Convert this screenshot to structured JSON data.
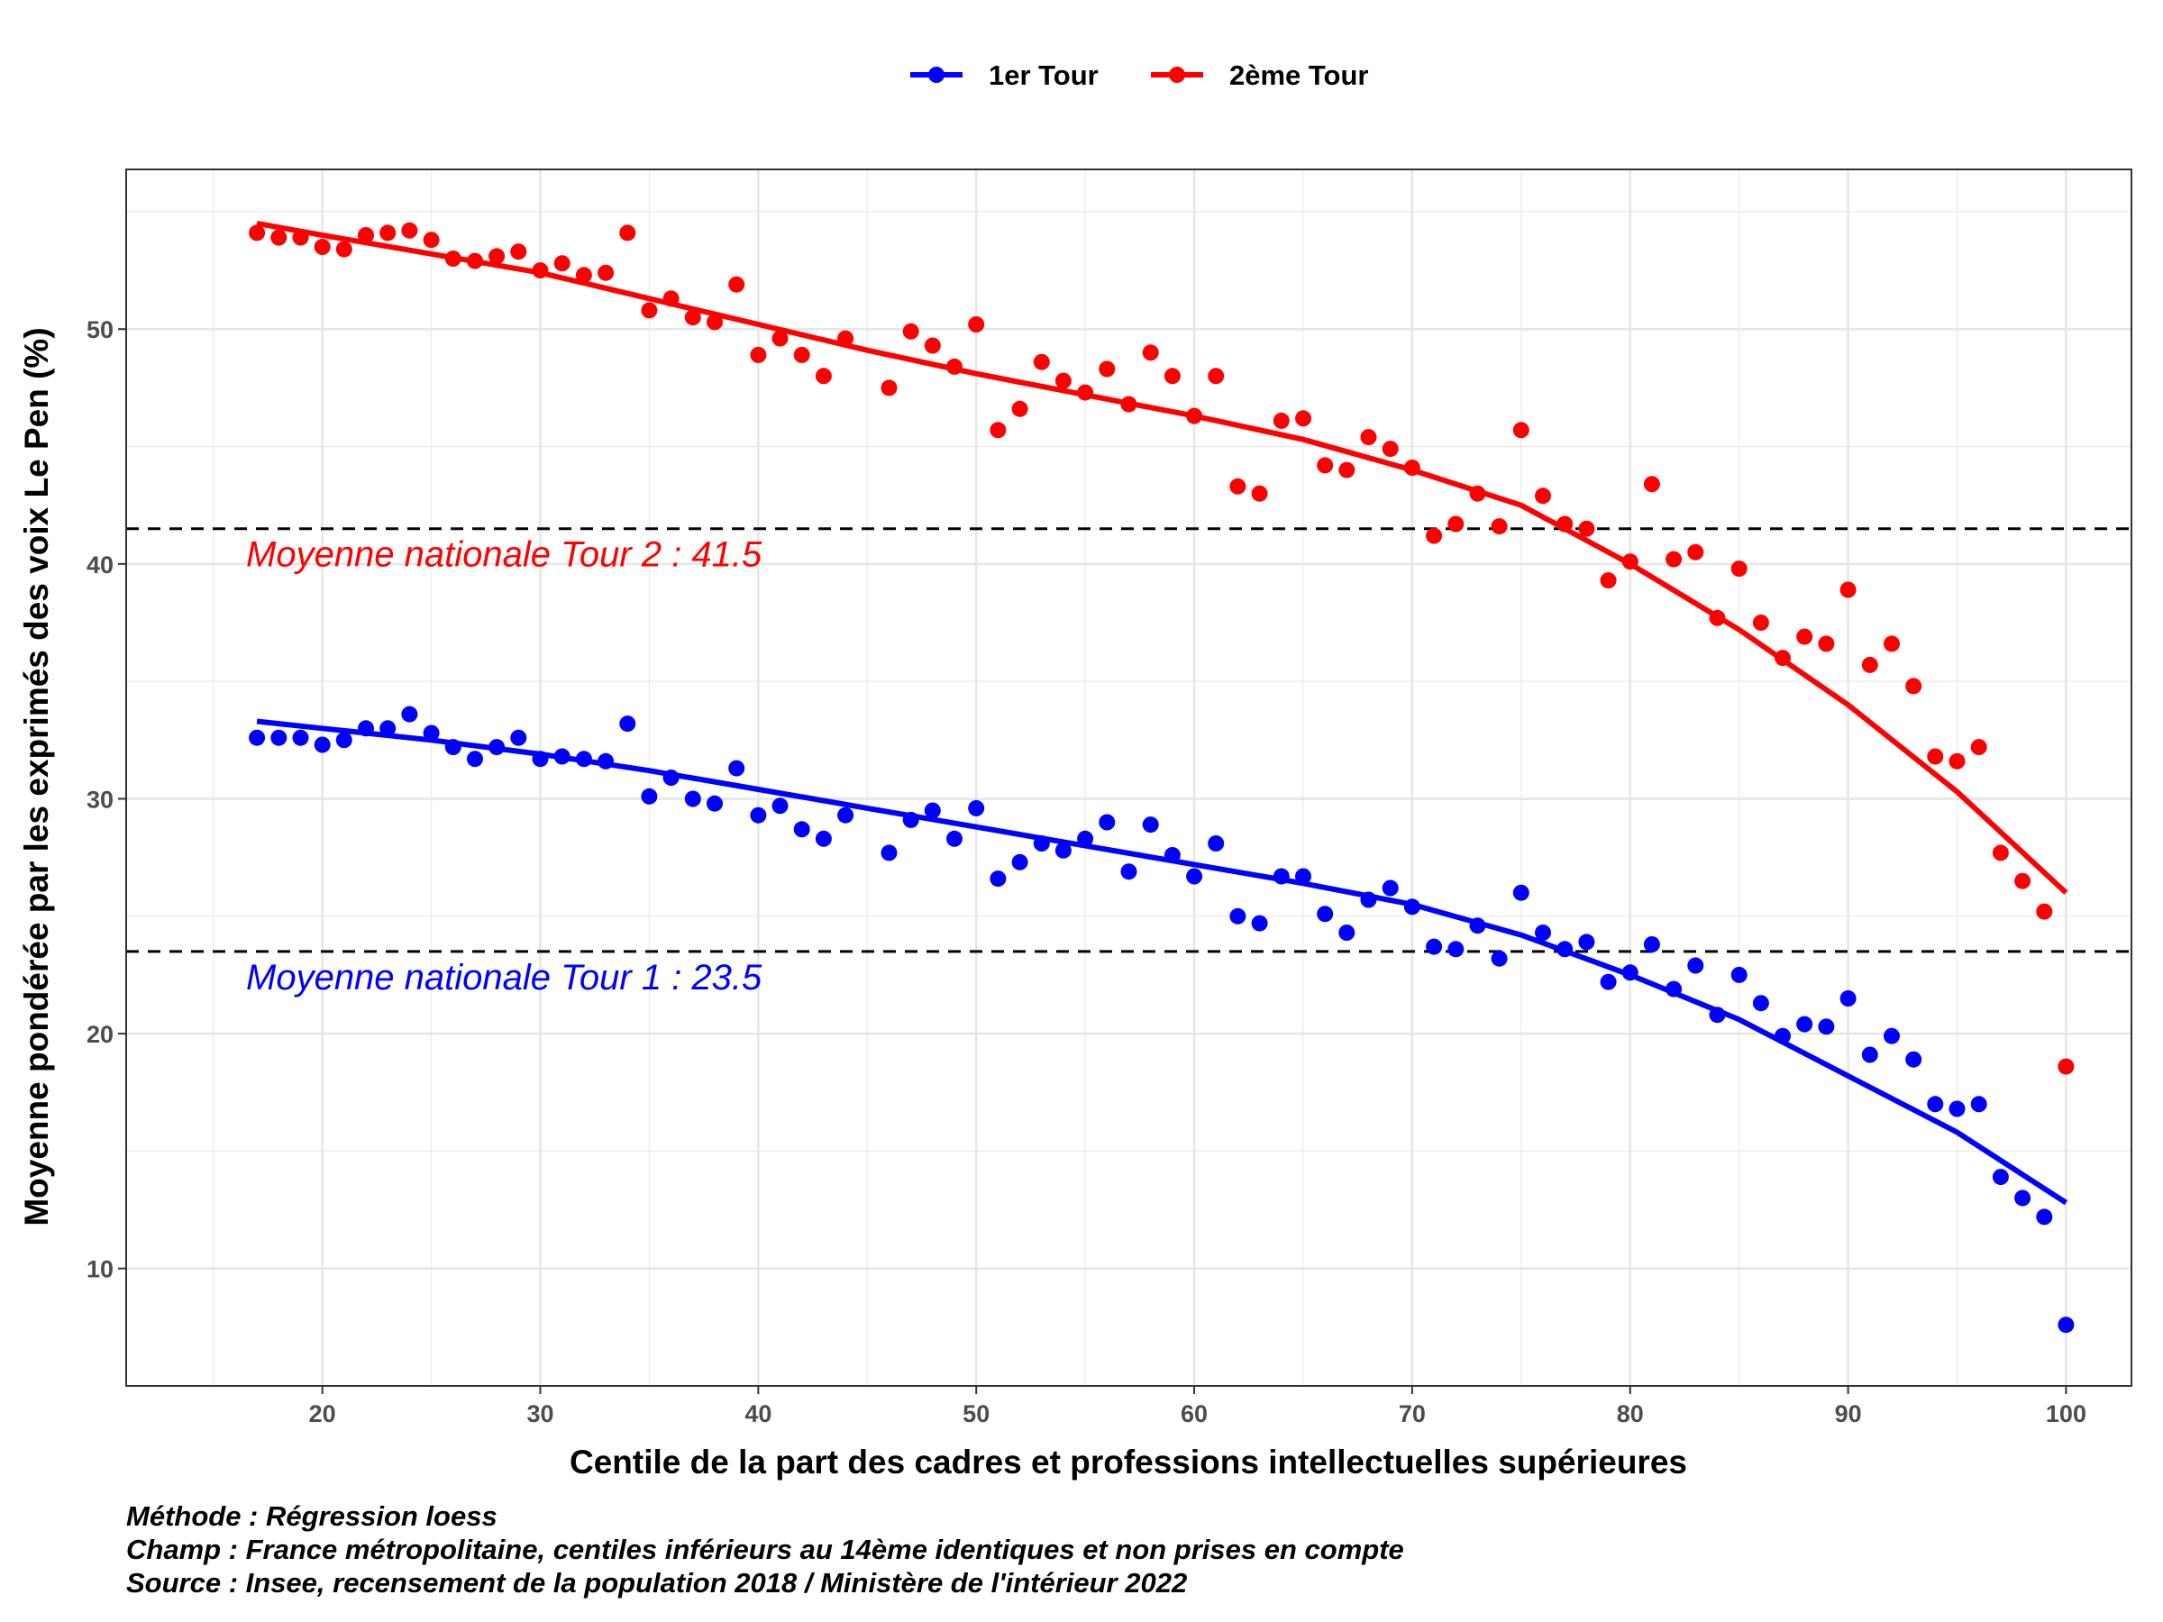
{
  "chart_data": {
    "type": "scatter",
    "xlabel": "Centile de la part des cadres et professions intellectuelles supérieures",
    "ylabel": "Moyenne pondérée par les exprimés des voix Le Pen (%)",
    "xlim": [
      11,
      103
    ],
    "ylim": [
      5,
      56.8
    ],
    "x_ticks": [
      20,
      30,
      40,
      50,
      60,
      70,
      80,
      90,
      100
    ],
    "y_ticks": [
      10,
      20,
      30,
      40,
      50
    ],
    "grid": true,
    "legend_position": "top",
    "series": [
      {
        "name": "1er Tour",
        "color": "#0000ff",
        "x": [
          17,
          18,
          19,
          20,
          21,
          22,
          23,
          24,
          25,
          26,
          27,
          28,
          29,
          30,
          31,
          32,
          33,
          34,
          35,
          36,
          37,
          38,
          39,
          40,
          41,
          42,
          43,
          44,
          46,
          47,
          48,
          49,
          50,
          51,
          52,
          53,
          54,
          55,
          56,
          57,
          58,
          59,
          60,
          61,
          62,
          63,
          64,
          65,
          66,
          67,
          68,
          69,
          70,
          71,
          72,
          73,
          74,
          75,
          76,
          77,
          78,
          79,
          80,
          81,
          82,
          83,
          84,
          85,
          86,
          87,
          88,
          89,
          90,
          91,
          92,
          93,
          94,
          95,
          96,
          97,
          98,
          99,
          100
        ],
        "y": [
          32.6,
          32.6,
          32.6,
          32.3,
          32.5,
          33.0,
          33.0,
          33.6,
          32.8,
          32.2,
          31.7,
          32.2,
          32.6,
          31.7,
          31.8,
          31.7,
          31.6,
          33.2,
          30.1,
          30.9,
          30.0,
          29.8,
          31.3,
          29.3,
          29.7,
          28.7,
          28.3,
          29.3,
          27.7,
          29.1,
          29.5,
          28.3,
          29.6,
          26.6,
          27.3,
          28.1,
          27.8,
          28.3,
          29.0,
          26.9,
          28.9,
          27.6,
          26.7,
          28.1,
          25.0,
          24.7,
          26.7,
          26.7,
          25.1,
          24.3,
          25.7,
          26.2,
          25.4,
          23.7,
          23.6,
          24.6,
          23.2,
          26.0,
          24.3,
          23.6,
          23.9,
          22.2,
          22.6,
          23.8,
          21.9,
          22.9,
          20.8,
          22.5,
          21.3,
          19.9,
          20.4,
          20.3,
          21.5,
          19.1,
          19.9,
          18.9,
          17.0,
          16.8,
          17.0,
          13.9,
          13.0,
          12.2,
          7.6
        ],
        "trend": [
          [
            17,
            33.3
          ],
          [
            20,
            33.0
          ],
          [
            25,
            32.5
          ],
          [
            30,
            31.9
          ],
          [
            35,
            31.2
          ],
          [
            40,
            30.4
          ],
          [
            45,
            29.6
          ],
          [
            50,
            28.8
          ],
          [
            55,
            28.0
          ],
          [
            60,
            27.2
          ],
          [
            65,
            26.4
          ],
          [
            70,
            25.5
          ],
          [
            75,
            24.2
          ],
          [
            80,
            22.5
          ],
          [
            85,
            20.6
          ],
          [
            90,
            18.2
          ],
          [
            95,
            15.8
          ],
          [
            100,
            12.8
          ]
        ]
      },
      {
        "name": "2ème Tour",
        "color": "#ff0000",
        "x": [
          17,
          18,
          19,
          20,
          21,
          22,
          23,
          24,
          25,
          26,
          27,
          28,
          29,
          30,
          31,
          32,
          33,
          34,
          35,
          36,
          37,
          38,
          39,
          40,
          41,
          42,
          43,
          44,
          46,
          47,
          48,
          49,
          50,
          51,
          52,
          53,
          54,
          55,
          56,
          57,
          58,
          59,
          60,
          61,
          62,
          63,
          64,
          65,
          66,
          67,
          68,
          69,
          70,
          71,
          72,
          73,
          74,
          75,
          76,
          77,
          78,
          79,
          80,
          81,
          82,
          83,
          84,
          85,
          86,
          87,
          88,
          89,
          90,
          91,
          92,
          93,
          94,
          95,
          96,
          97,
          98,
          99,
          100
        ],
        "y": [
          54.1,
          53.9,
          53.9,
          53.5,
          53.4,
          54.0,
          54.1,
          54.2,
          53.8,
          53.0,
          52.9,
          53.1,
          53.3,
          52.5,
          52.8,
          52.3,
          52.4,
          54.1,
          50.8,
          51.3,
          50.5,
          50.3,
          51.9,
          48.9,
          49.6,
          48.9,
          48.0,
          49.6,
          47.5,
          49.9,
          49.3,
          48.4,
          50.2,
          45.7,
          46.6,
          48.6,
          47.8,
          47.3,
          48.3,
          46.8,
          49.0,
          48.0,
          46.3,
          48.0,
          43.3,
          43.0,
          46.1,
          46.2,
          44.2,
          44.0,
          45.4,
          44.9,
          44.1,
          41.2,
          41.7,
          43.0,
          41.6,
          45.7,
          42.9,
          41.7,
          41.5,
          39.3,
          40.1,
          43.4,
          40.2,
          40.5,
          37.7,
          39.8,
          37.5,
          36.0,
          36.9,
          36.6,
          38.9,
          35.7,
          36.6,
          34.8,
          31.8,
          31.6,
          32.2,
          27.7,
          26.5,
          25.2,
          18.6
        ],
        "trend": [
          [
            17,
            54.5
          ],
          [
            20,
            54.0
          ],
          [
            25,
            53.2
          ],
          [
            30,
            52.4
          ],
          [
            35,
            51.3
          ],
          [
            40,
            50.2
          ],
          [
            45,
            49.1
          ],
          [
            50,
            48.1
          ],
          [
            55,
            47.2
          ],
          [
            60,
            46.3
          ],
          [
            65,
            45.3
          ],
          [
            70,
            44.0
          ],
          [
            75,
            42.5
          ],
          [
            80,
            40.0
          ],
          [
            85,
            37.2
          ],
          [
            90,
            34.0
          ],
          [
            95,
            30.3
          ],
          [
            100,
            26.0
          ]
        ]
      }
    ],
    "hlines": [
      {
        "y": 23.5,
        "label": "Moyenne nationale Tour 1 : 23.5",
        "label_color": "#0000ff"
      },
      {
        "y": 41.5,
        "label": "Moyenne nationale Tour 2 : 41.5",
        "label_color": "#ff0000"
      }
    ],
    "caption": [
      "Méthode : Régression loess",
      "Champ : France métropolitaine, centiles inférieurs au 14ème identiques et non prises en compte",
      "Source : Insee, recensement de la population 2018 / Ministère de l'intérieur 2022"
    ]
  }
}
